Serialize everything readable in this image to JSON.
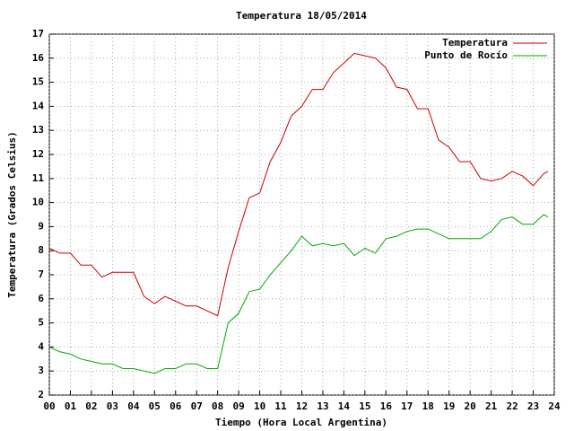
{
  "chart_data": {
    "type": "line",
    "title": "Temperatura 18/05/2014",
    "x_label": "Tiempo (Hora Local Argentina)",
    "y_label": "Temperatura (Grados Celsius)",
    "x": [
      0,
      0.5,
      1,
      1.5,
      2,
      2.5,
      3,
      3.5,
      4,
      4.5,
      5,
      5.5,
      6,
      6.5,
      7,
      7.5,
      8,
      8.5,
      9,
      9.5,
      10,
      10.5,
      11,
      11.5,
      12,
      12.5,
      13,
      13.5,
      14,
      14.5,
      15,
      15.5,
      16,
      16.5,
      17,
      17.5,
      18,
      18.5,
      19,
      19.5,
      20,
      20.5,
      21,
      21.5,
      22,
      22.5,
      23,
      23.5,
      23.7
    ],
    "series": [
      {
        "name": "Temperatura",
        "color": "#cc0000",
        "values": [
          8.1,
          7.9,
          7.9,
          7.4,
          7.4,
          6.9,
          7.1,
          7.1,
          7.1,
          6.1,
          5.8,
          6.1,
          5.9,
          5.7,
          5.7,
          5.5,
          5.3,
          7.3,
          8.8,
          10.2,
          10.4,
          11.7,
          12.5,
          13.6,
          14.0,
          14.7,
          14.7,
          15.4,
          15.8,
          16.2,
          16.1,
          16.0,
          15.6,
          14.8,
          14.7,
          13.9,
          13.9,
          12.6,
          12.3,
          11.7,
          11.7,
          11.0,
          10.9,
          11.0,
          11.3,
          11.1,
          10.7,
          11.2,
          11.3
        ]
      },
      {
        "name": "Punto de Rocío",
        "color": "#00aa00",
        "values": [
          4.0,
          3.8,
          3.7,
          3.5,
          3.4,
          3.3,
          3.3,
          3.1,
          3.1,
          3.0,
          2.9,
          3.1,
          3.1,
          3.3,
          3.3,
          3.1,
          3.1,
          5.0,
          5.4,
          6.3,
          6.4,
          7.0,
          7.5,
          8.0,
          8.6,
          8.2,
          8.3,
          8.2,
          8.3,
          7.8,
          8.1,
          7.9,
          8.5,
          8.6,
          8.8,
          8.9,
          8.9,
          8.7,
          8.5,
          8.5,
          8.5,
          8.5,
          8.8,
          9.3,
          9.4,
          9.1,
          9.1,
          9.5,
          9.4
        ]
      }
    ],
    "xlim": [
      0,
      24
    ],
    "xticks": [
      {
        "value": 0,
        "label": "00"
      },
      {
        "value": 1,
        "label": "01"
      },
      {
        "value": 2,
        "label": "02"
      },
      {
        "value": 3,
        "label": "03"
      },
      {
        "value": 4,
        "label": "04"
      },
      {
        "value": 5,
        "label": "05"
      },
      {
        "value": 6,
        "label": "06"
      },
      {
        "value": 7,
        "label": "07"
      },
      {
        "value": 8,
        "label": "08"
      },
      {
        "value": 9,
        "label": "09"
      },
      {
        "value": 10,
        "label": "10"
      },
      {
        "value": 11,
        "label": "11"
      },
      {
        "value": 12,
        "label": "12"
      },
      {
        "value": 13,
        "label": "13"
      },
      {
        "value": 14,
        "label": "14"
      },
      {
        "value": 15,
        "label": "15"
      },
      {
        "value": 16,
        "label": "16"
      },
      {
        "value": 17,
        "label": "17"
      },
      {
        "value": 18,
        "label": "18"
      },
      {
        "value": 19,
        "label": "19"
      },
      {
        "value": 20,
        "label": "20"
      },
      {
        "value": 21,
        "label": "21"
      },
      {
        "value": 22,
        "label": "22"
      },
      {
        "value": 23,
        "label": "23"
      },
      {
        "value": 24,
        "label": "24"
      }
    ],
    "ylim": [
      2,
      17
    ],
    "yticks": [
      2,
      3,
      4,
      5,
      6,
      7,
      8,
      9,
      10,
      11,
      12,
      13,
      14,
      15,
      16,
      17
    ],
    "grid": true,
    "legend": "top-right"
  }
}
